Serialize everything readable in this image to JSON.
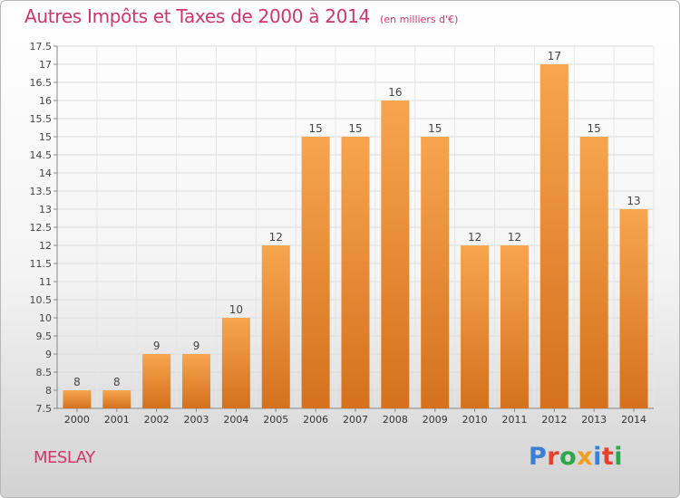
{
  "header": {
    "title": "Autres Impôts et Taxes de 2000 à 2014",
    "subtitle": "(en milliers d'€)"
  },
  "footer": {
    "town": "MESLAY",
    "logo_text": "Proxiti",
    "logo_colors": [
      "#3a7fd5",
      "#e8402a",
      "#2aa84a",
      "#f0a020",
      "#3a7fd5",
      "#e8402a",
      "#2aa84a"
    ]
  },
  "colors": {
    "bar_top": "#f7a54f",
    "bar_bottom": "#d5711c",
    "title": "#d2356a"
  },
  "chart_data": {
    "type": "bar",
    "categories": [
      "2000",
      "2001",
      "2002",
      "2003",
      "2004",
      "2005",
      "2006",
      "2007",
      "2008",
      "2009",
      "2010",
      "2011",
      "2012",
      "2013",
      "2014"
    ],
    "values": [
      8,
      8,
      9,
      9,
      10,
      12,
      15,
      15,
      16,
      15,
      12,
      12,
      17,
      15,
      13
    ],
    "value_labels": [
      "8",
      "8",
      "9",
      "9",
      "10",
      "12",
      "15",
      "15",
      "16",
      "15",
      "12",
      "12",
      "17",
      "15",
      "13"
    ],
    "ylim": [
      7.5,
      17.5
    ],
    "yticks": [
      7.5,
      8,
      8.5,
      9,
      9.5,
      10,
      10.5,
      11,
      11.5,
      12,
      12.5,
      13,
      13.5,
      14,
      14.5,
      15,
      15.5,
      16,
      16.5,
      17,
      17.5
    ],
    "ytick_labels": [
      "7.5",
      "8",
      "8.5",
      "9",
      "9.5",
      "10",
      "10.5",
      "11",
      "11.5",
      "12",
      "12.5",
      "13",
      "13.5",
      "14",
      "14.5",
      "15",
      "15.5",
      "16",
      "16.5",
      "17",
      "17.5"
    ],
    "grid": true
  }
}
